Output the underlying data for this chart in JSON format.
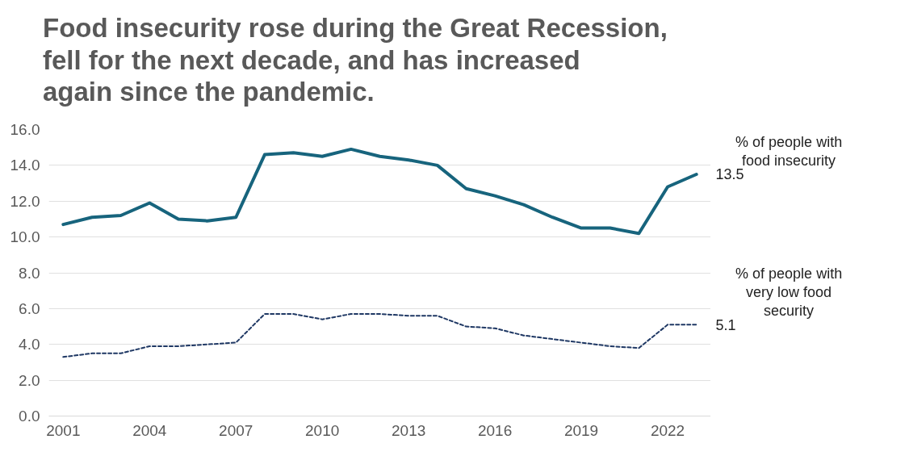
{
  "chart_data": {
    "type": "line",
    "title": "Food insecurity rose during the Great Recession,\nfell for the next decade, and has increased\nagain since the pandemic.",
    "x": [
      2001,
      2002,
      2003,
      2004,
      2005,
      2006,
      2007,
      2008,
      2009,
      2010,
      2011,
      2012,
      2013,
      2014,
      2015,
      2016,
      2017,
      2018,
      2019,
      2020,
      2021,
      2022,
      2023
    ],
    "series": [
      {
        "name": "% of people with food insecurity",
        "color": "#17647d",
        "line_style": "solid",
        "values": [
          10.7,
          11.1,
          11.2,
          11.9,
          11.0,
          10.9,
          11.1,
          14.6,
          14.7,
          14.5,
          14.9,
          14.5,
          14.3,
          14.0,
          12.7,
          12.3,
          11.8,
          11.1,
          10.5,
          10.5,
          10.2,
          12.8,
          13.5
        ],
        "value_labels": [
          null,
          null,
          null,
          null,
          null,
          null,
          null,
          null,
          null,
          null,
          null,
          null,
          null,
          null,
          null,
          null,
          null,
          null,
          null,
          null,
          null,
          null,
          "13.5"
        ]
      },
      {
        "name": "% of people with very low food security",
        "color": "#1f3864",
        "line_style": "dashed",
        "values": [
          3.3,
          3.5,
          3.5,
          3.9,
          3.9,
          4.0,
          4.1,
          5.7,
          5.7,
          5.4,
          5.7,
          5.7,
          5.6,
          5.6,
          5.0,
          4.9,
          4.5,
          4.3,
          4.1,
          3.9,
          3.8,
          5.1,
          5.1
        ],
        "value_labels": [
          null,
          null,
          null,
          null,
          null,
          null,
          null,
          null,
          null,
          null,
          null,
          null,
          null,
          null,
          null,
          null,
          null,
          null,
          null,
          null,
          null,
          null,
          "5.1"
        ]
      }
    ],
    "xlim": [
      2000.5,
      2023.5
    ],
    "xticks": [
      2001,
      2004,
      2007,
      2010,
      2013,
      2016,
      2019,
      2022
    ],
    "ylim": [
      0,
      16
    ],
    "yticks": [
      {
        "value": 0,
        "label": "0.0"
      },
      {
        "value": 2,
        "label": "2.0"
      },
      {
        "value": 4,
        "label": "4.0"
      },
      {
        "value": 6,
        "label": "6.0"
      },
      {
        "value": 8,
        "label": "8.0"
      },
      {
        "value": 10,
        "label": "10.0"
      },
      {
        "value": 12,
        "label": "12.0"
      },
      {
        "value": 14,
        "label": "14.0"
      },
      {
        "value": 16,
        "label": "16.0"
      }
    ],
    "grid": "y"
  }
}
